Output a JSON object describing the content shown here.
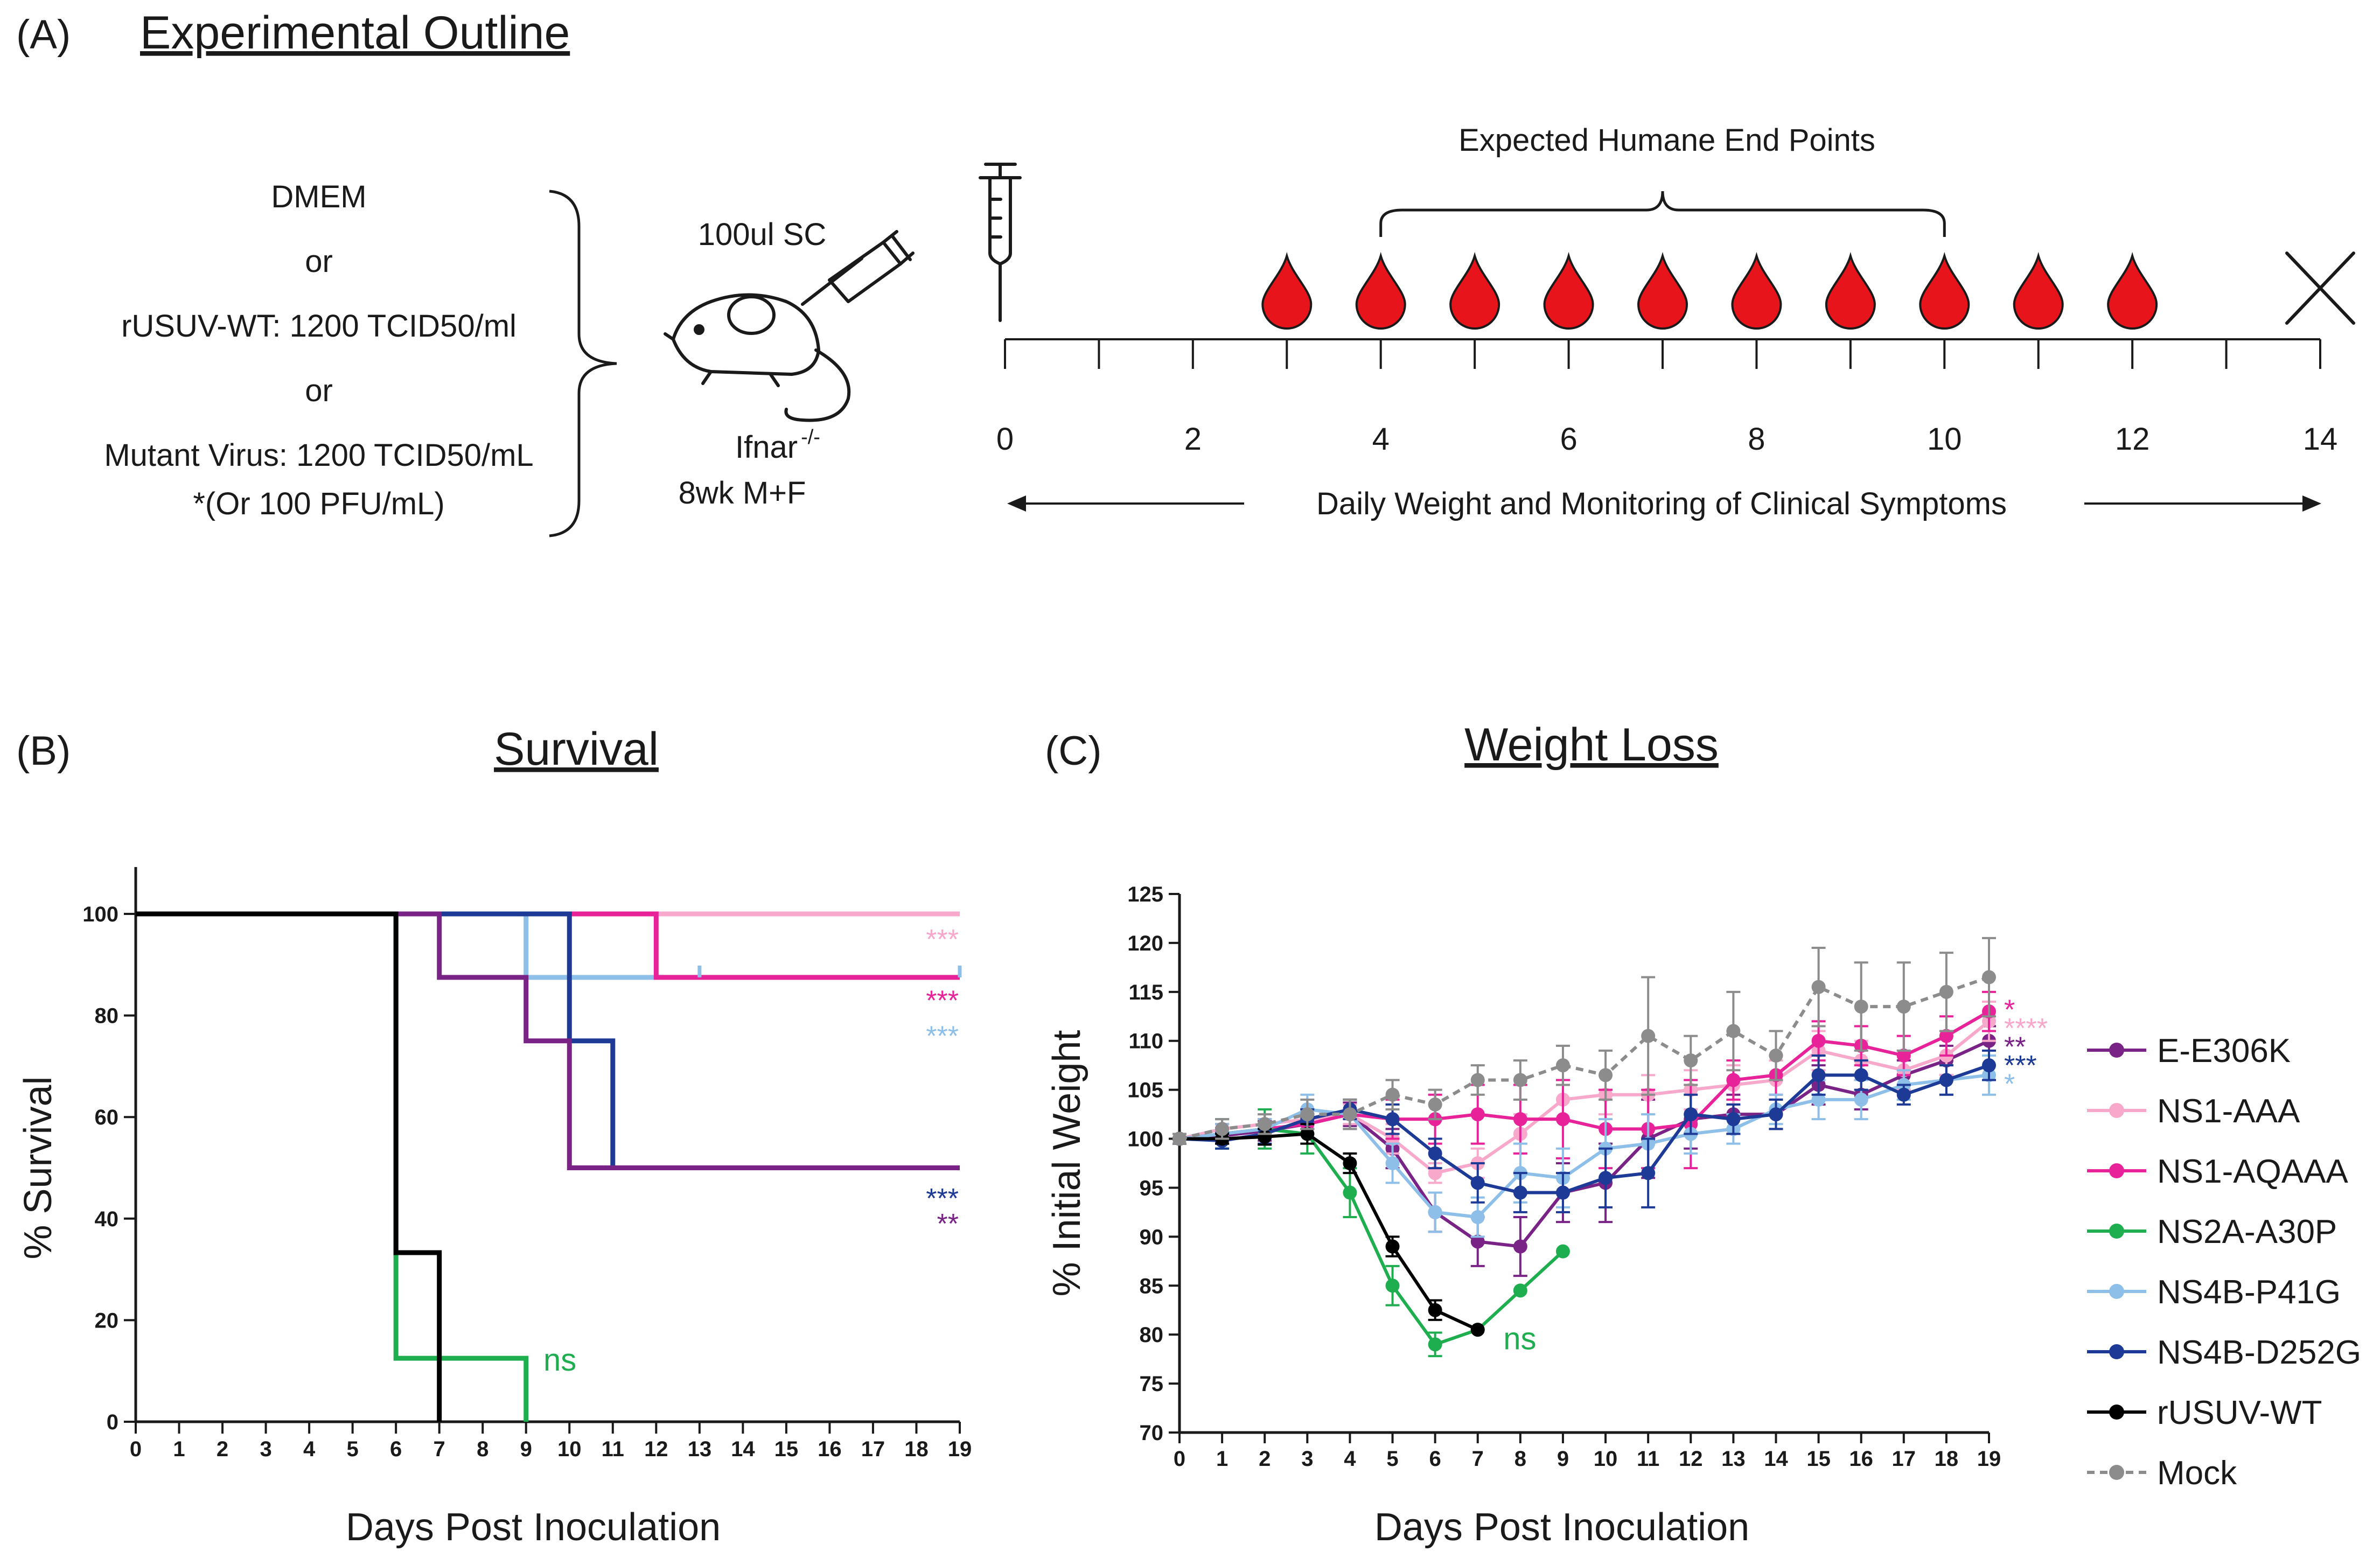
{
  "panel_a": {
    "label": "(A)",
    "title": "Experimental Outline",
    "inoculum_lines": [
      "DMEM",
      "or",
      "rUSUV-WT: 1200 TCID50/ml",
      "or",
      "Mutant Virus: 1200 TCID50/mL",
      "*(Or 100 PFU/mL)"
    ],
    "injection_label": "100ul SC",
    "mouse_strain": "Ifnar",
    "mouse_strain_sup": "-/-",
    "mouse_age_sex": "8wk M+F",
    "endpoints_label": "Expected Humane End Points",
    "monitoring_label": "Daily Weight and Monitoring of Clinical Symptoms",
    "timeline_labels": [
      "0",
      "2",
      "4",
      "6",
      "8",
      "10",
      "12",
      "14"
    ],
    "timeline_days": [
      0,
      2,
      4,
      6,
      8,
      10,
      12,
      14
    ],
    "timeline_max_day": 14,
    "blood_draw_days": [
      3,
      4,
      5,
      6,
      7,
      8,
      9,
      10,
      11,
      12
    ],
    "endpoint_range_days": [
      4,
      10
    ],
    "end_day": 14,
    "colors": {
      "blood": "#e8141c",
      "ink": "#1a1a1a"
    }
  },
  "chart_data": [
    {
      "type": "line",
      "subtype": "step",
      "panel_label": "(B)",
      "title": "Survival",
      "xlabel": "Days Post Inoculation",
      "ylabel": "% Survival",
      "xlim": [
        0,
        19
      ],
      "ylim": [
        0,
        100
      ],
      "xticks": [
        0,
        1,
        2,
        3,
        4,
        5,
        6,
        7,
        8,
        9,
        10,
        11,
        12,
        13,
        14,
        15,
        16,
        17,
        18,
        19
      ],
      "yticks": [
        0,
        20,
        40,
        60,
        80,
        100
      ],
      "series": [
        {
          "name": "Mock",
          "color": "#8c8c8c",
          "steps": [
            [
              0,
              100
            ],
            [
              19,
              100
            ]
          ]
        },
        {
          "name": "NS1-AAA",
          "color": "#f7a8cb",
          "steps": [
            [
              0,
              100
            ],
            [
              19,
              100
            ]
          ]
        },
        {
          "name": "NS4B-P41G",
          "color": "#8ebfe8",
          "steps": [
            [
              0,
              100
            ],
            [
              9,
              87.5
            ],
            [
              19,
              87.5
            ]
          ]
        },
        {
          "name": "NS1-AQAAA",
          "color": "#e8239a",
          "steps": [
            [
              0,
              100
            ],
            [
              12,
              87.5
            ],
            [
              19,
              87.5
            ]
          ]
        },
        {
          "name": "NS4B-D252G",
          "color": "#1c3a96",
          "steps": [
            [
              0,
              100
            ],
            [
              10,
              75
            ],
            [
              11,
              50
            ],
            [
              19,
              50
            ]
          ]
        },
        {
          "name": "E-E306K",
          "color": "#7a2387",
          "steps": [
            [
              0,
              100
            ],
            [
              7,
              87.5
            ],
            [
              9,
              75
            ],
            [
              10,
              50
            ],
            [
              19,
              50
            ]
          ]
        },
        {
          "name": "NS2A-A30P",
          "color": "#1fae4f",
          "steps": [
            [
              0,
              100
            ],
            [
              6,
              12.5
            ],
            [
              9,
              0
            ]
          ]
        },
        {
          "name": "rUSUV-WT",
          "color": "#000000",
          "steps": [
            [
              0,
              100
            ],
            [
              6,
              33.3
            ],
            [
              7,
              0
            ]
          ]
        }
      ],
      "censor_ticks": [
        {
          "series": "NS4B-P41G",
          "x": 13,
          "y": 87.5
        },
        {
          "series": "NS4B-P41G",
          "x": 19,
          "y": 87.5
        }
      ],
      "annotations": [
        {
          "text": "***",
          "color": "#f7a8cb",
          "y": 95
        },
        {
          "text": "***",
          "color": "#e8239a",
          "y": 83
        },
        {
          "text": "***",
          "color": "#8ebfe8",
          "y": 76
        },
        {
          "text": "***",
          "color": "#1c3a96",
          "y": 44
        },
        {
          "text": "**",
          "color": "#7a2387",
          "y": 39
        },
        {
          "text": "ns",
          "color": "#1fae4f",
          "x": 9.4,
          "y": 12
        }
      ]
    },
    {
      "type": "line",
      "panel_label": "(C)",
      "title": "Weight Loss",
      "xlabel": "Days Post Inoculation",
      "ylabel": "% Initial Weight",
      "xlim": [
        0,
        19
      ],
      "ylim": [
        70,
        125
      ],
      "xticks": [
        0,
        1,
        2,
        3,
        4,
        5,
        6,
        7,
        8,
        9,
        10,
        11,
        12,
        13,
        14,
        15,
        16,
        17,
        18,
        19
      ],
      "yticks": [
        70,
        75,
        80,
        85,
        90,
        95,
        100,
        105,
        110,
        115,
        120,
        125
      ],
      "legend_position": "right",
      "series": [
        {
          "name": "E-E306K",
          "color": "#7a2387",
          "dashed": false,
          "x": [
            0,
            1,
            2,
            3,
            4,
            5,
            6,
            7,
            8,
            9,
            10,
            11,
            12,
            13,
            14,
            15,
            16,
            17,
            18,
            19
          ],
          "y": [
            100,
            100.3,
            100.8,
            101.5,
            102.5,
            99,
            92.5,
            89.5,
            89,
            94.5,
            95.5,
            100,
            102,
            102.5,
            102.5,
            105.5,
            104.5,
            106.5,
            108,
            110
          ],
          "err": [
            0.5,
            0.8,
            1.0,
            1.0,
            1.2,
            2.0,
            2.0,
            2.5,
            3.0,
            3.0,
            4.0,
            4.0,
            3.0,
            2.0,
            1.5,
            2.0,
            1.5,
            1.5,
            1.5,
            1.5
          ]
        },
        {
          "name": "NS1-AAA",
          "color": "#f7a8cb",
          "dashed": false,
          "x": [
            0,
            1,
            2,
            3,
            4,
            5,
            6,
            7,
            8,
            9,
            10,
            11,
            12,
            13,
            14,
            15,
            16,
            17,
            18,
            19
          ],
          "y": [
            100,
            101,
            101.5,
            102,
            102.5,
            100,
            96.5,
            97.5,
            100.5,
            104,
            104.5,
            104.5,
            105,
            105.5,
            106,
            109,
            108,
            107,
            108.5,
            112
          ],
          "err": [
            0.5,
            1.0,
            1.0,
            1.0,
            1.0,
            1.5,
            1.0,
            1.5,
            2.0,
            2.0,
            2.0,
            2.0,
            2.0,
            2.0,
            2.0,
            2.0,
            2.0,
            2.0,
            2.0,
            2.0
          ]
        },
        {
          "name": "NS1-AQAAA",
          "color": "#e8239a",
          "dashed": false,
          "x": [
            0,
            1,
            2,
            3,
            4,
            5,
            6,
            7,
            8,
            9,
            10,
            11,
            12,
            13,
            14,
            15,
            16,
            17,
            18,
            19
          ],
          "y": [
            100,
            100.5,
            101,
            101.5,
            102.5,
            102,
            102,
            102.5,
            102,
            102,
            101,
            101,
            101.5,
            106,
            106.5,
            110,
            109.5,
            108.5,
            110.5,
            113
          ],
          "err": [
            0.5,
            1.0,
            1.0,
            1.0,
            1.5,
            2.0,
            2.5,
            3.0,
            3.5,
            4.0,
            4.0,
            4.0,
            4.5,
            2.0,
            2.0,
            2.0,
            2.0,
            2.0,
            2.0,
            2.0
          ]
        },
        {
          "name": "NS2A-A30P",
          "color": "#1fae4f",
          "dashed": false,
          "x": [
            0,
            1,
            2,
            3,
            4,
            5,
            6,
            7,
            8,
            9
          ],
          "y": [
            100,
            100.5,
            101,
            100.5,
            94.5,
            85,
            79,
            80.5,
            84.5,
            88.5
          ],
          "err": [
            0.5,
            1.5,
            2.0,
            2.0,
            2.5,
            2.0,
            1.2,
            0,
            0,
            0
          ]
        },
        {
          "name": "NS4B-P41G",
          "color": "#8ebfe8",
          "dashed": false,
          "x": [
            0,
            1,
            2,
            3,
            4,
            5,
            6,
            7,
            8,
            9,
            10,
            11,
            12,
            13,
            14,
            15,
            16,
            17,
            18,
            19
          ],
          "y": [
            100,
            100.5,
            101,
            103,
            102.5,
            97.5,
            92.5,
            92,
            96.5,
            96,
            99,
            99.5,
            100.5,
            101,
            103,
            104,
            104,
            105.5,
            106,
            106.5
          ],
          "err": [
            0.5,
            1.0,
            1.0,
            1.5,
            1.5,
            2.0,
            2.0,
            2.0,
            3.0,
            3.0,
            3.0,
            3.0,
            2.0,
            1.5,
            1.5,
            2.0,
            2.0,
            1.5,
            1.5,
            2.0
          ]
        },
        {
          "name": "NS4B-D252G",
          "color": "#1c3a96",
          "dashed": false,
          "x": [
            0,
            1,
            2,
            3,
            4,
            5,
            6,
            7,
            8,
            9,
            10,
            11,
            12,
            13,
            14,
            15,
            16,
            17,
            18,
            19
          ],
          "y": [
            100,
            99.8,
            100.5,
            102,
            103,
            102,
            98.5,
            95.5,
            94.5,
            94.5,
            96,
            96.5,
            102.5,
            102,
            102.5,
            106.5,
            106.5,
            104.5,
            106,
            107.5
          ],
          "err": [
            0.5,
            0.8,
            1.0,
            1.0,
            1.0,
            1.5,
            1.5,
            2.0,
            2.0,
            2.0,
            3.0,
            3.5,
            2.0,
            1.5,
            1.5,
            2.0,
            1.5,
            1.0,
            1.5,
            1.5
          ]
        },
        {
          "name": "rUSUV-WT",
          "color": "#000000",
          "dashed": false,
          "x": [
            0,
            1,
            2,
            3,
            4,
            5,
            6,
            7
          ],
          "y": [
            100,
            100,
            100.2,
            100.5,
            97.5,
            89,
            82.5,
            80.5
          ],
          "err": [
            0.5,
            0.5,
            0.8,
            1.0,
            1.0,
            1.0,
            1.0,
            0
          ]
        },
        {
          "name": "Mock",
          "color": "#8c8c8c",
          "dashed": true,
          "x": [
            0,
            1,
            2,
            3,
            4,
            5,
            6,
            7,
            8,
            9,
            10,
            11,
            12,
            13,
            14,
            15,
            16,
            17,
            18,
            19
          ],
          "y": [
            100,
            101,
            101.5,
            102.5,
            102.5,
            104.5,
            103.5,
            106,
            106,
            107.5,
            106.5,
            110.5,
            108,
            111,
            108.5,
            115.5,
            113.5,
            113.5,
            115,
            116.5
          ],
          "err": [
            0.5,
            1.0,
            1.0,
            1.5,
            1.5,
            1.5,
            1.5,
            1.5,
            2.0,
            2.0,
            2.5,
            6.0,
            2.5,
            4.0,
            2.5,
            4.0,
            4.5,
            4.5,
            4.0,
            4.0
          ]
        }
      ],
      "annotations": [
        {
          "text": "*",
          "color": "#e8239a",
          "y": 113.2
        },
        {
          "text": "****",
          "color": "#f7a8cb",
          "y": 111.3
        },
        {
          "text": "**",
          "color": "#7a2387",
          "y": 109.4
        },
        {
          "text": "***",
          "color": "#1c3a96",
          "y": 107.5
        },
        {
          "text": "*",
          "color": "#8ebfe8",
          "y": 105.6
        },
        {
          "text": "ns",
          "color": "#1fae4f",
          "x": 7.6,
          "y": 79.5
        }
      ]
    }
  ]
}
